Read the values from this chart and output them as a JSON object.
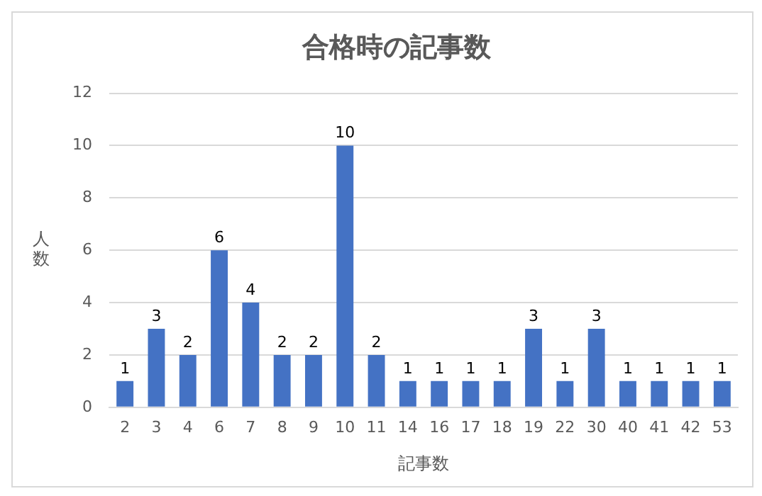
{
  "chart_data": {
    "type": "bar",
    "title": "合格時の記事数",
    "xlabel": "記事数",
    "ylabel": "人数",
    "categories": [
      "2",
      "3",
      "4",
      "6",
      "7",
      "8",
      "9",
      "10",
      "11",
      "14",
      "16",
      "17",
      "18",
      "19",
      "22",
      "30",
      "40",
      "41",
      "42",
      "53"
    ],
    "values": [
      1,
      3,
      2,
      6,
      4,
      2,
      2,
      10,
      2,
      1,
      1,
      1,
      1,
      3,
      1,
      3,
      1,
      1,
      1,
      1
    ],
    "color": "#4472c4",
    "ylim": [
      0,
      12
    ],
    "yticks": [
      0,
      2,
      4,
      6,
      8,
      10,
      12
    ],
    "grid": "y",
    "legend": false,
    "data_labels": true
  }
}
